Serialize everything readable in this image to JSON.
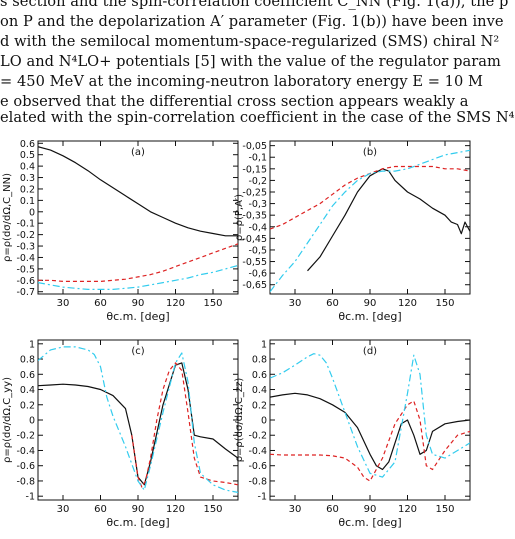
{
  "text_lines": [
    "s section and the spin-correlation coefficient C_NN (Fig. 1(a)), the p",
    "on P and the depolarization A′ parameter (Fig. 1(b)) have been inve",
    "d with the semilocal momentum-space-regularized (SMS) chiral N²",
    "LO and N⁴LO+ potentials [5] with the value of the regulator param",
    "= 450 MeV at the incoming-neutron laboratory energy E = 10 M",
    "e observed that the differential cross section appears weakly a",
    "elated with the spin-correlation coefficient in the case of the SMS N⁴"
  ],
  "colors": {
    "solid": "#111111",
    "dashed": "#dd2222",
    "dashdot": "#33ccee"
  },
  "chart_data": [
    {
      "type": "line",
      "panel_label": "(a)",
      "ylabel": "ρ=ρ(dσ/dΩ,C_NN)",
      "xlabel": "θc.m. [deg]",
      "xlim": [
        10,
        170
      ],
      "ylim": [
        -0.72,
        0.62
      ],
      "xticks": [
        30,
        60,
        90,
        120,
        150
      ],
      "yticks": [
        0.6,
        0.5,
        0.4,
        0.3,
        0.2,
        0.1,
        0,
        -0.1,
        -0.2,
        -0.3,
        -0.4,
        -0.5,
        -0.6,
        -0.7
      ],
      "ytick_labels": [
        "0.6",
        "0.5",
        "0.4",
        "0.3",
        "0.2",
        "0.1",
        "0",
        "-0.1",
        "-0.2",
        "-0.3",
        "-0.4",
        "-0.5",
        "-0.6",
        "-0.7"
      ],
      "series": [
        {
          "style": "solid",
          "x": [
            10,
            20,
            30,
            40,
            50,
            60,
            70,
            80,
            90,
            100,
            110,
            120,
            130,
            140,
            150,
            160,
            170
          ],
          "y": [
            0.57,
            0.54,
            0.49,
            0.43,
            0.36,
            0.28,
            0.21,
            0.14,
            0.07,
            0.0,
            -0.05,
            -0.1,
            -0.14,
            -0.17,
            -0.19,
            -0.21,
            -0.21
          ]
        },
        {
          "style": "dashed",
          "x": [
            10,
            20,
            30,
            40,
            50,
            60,
            70,
            80,
            90,
            100,
            110,
            120,
            130,
            140,
            150,
            160,
            170
          ],
          "y": [
            -0.6,
            -0.6,
            -0.61,
            -0.61,
            -0.61,
            -0.61,
            -0.6,
            -0.59,
            -0.57,
            -0.55,
            -0.52,
            -0.48,
            -0.44,
            -0.4,
            -0.36,
            -0.32,
            -0.28
          ]
        },
        {
          "style": "dashdot",
          "x": [
            10,
            20,
            30,
            40,
            50,
            60,
            70,
            80,
            90,
            100,
            110,
            120,
            130,
            140,
            150,
            160,
            170
          ],
          "y": [
            -0.62,
            -0.64,
            -0.66,
            -0.67,
            -0.68,
            -0.68,
            -0.68,
            -0.67,
            -0.66,
            -0.64,
            -0.62,
            -0.6,
            -0.58,
            -0.55,
            -0.53,
            -0.5,
            -0.47
          ]
        }
      ]
    },
    {
      "type": "line",
      "panel_label": "(b)",
      "ylabel": "ρ=ρ(P,A′)",
      "xlabel": "θc.m. [deg]",
      "xlim": [
        10,
        170
      ],
      "ylim": [
        -0.69,
        -0.03
      ],
      "xticks": [
        30,
        60,
        90,
        120,
        150
      ],
      "yticks": [
        -0.05,
        -0.1,
        -0.15,
        -0.2,
        -0.25,
        -0.3,
        -0.35,
        -0.4,
        -0.45,
        -0.5,
        -0.55,
        -0.6,
        -0.65
      ],
      "ytick_labels": [
        "-0,05",
        "-0,1",
        "-0,15",
        "-0,2",
        "-0,25",
        "-0,3",
        "-0,35",
        "-0,4",
        "-0,45",
        "-0,5",
        "-0,55",
        "-0,6",
        "-0,65"
      ],
      "series": [
        {
          "style": "solid",
          "x": [
            40,
            50,
            60,
            70,
            80,
            90,
            100,
            105,
            110,
            120,
            130,
            140,
            150,
            155,
            160,
            163,
            166,
            170
          ],
          "y": [
            -0.59,
            -0.53,
            -0.44,
            -0.35,
            -0.25,
            -0.18,
            -0.15,
            -0.16,
            -0.2,
            -0.25,
            -0.28,
            -0.32,
            -0.35,
            -0.38,
            -0.39,
            -0.43,
            -0.38,
            -0.42
          ]
        },
        {
          "style": "dashed",
          "x": [
            10,
            20,
            30,
            40,
            50,
            60,
            70,
            80,
            90,
            100,
            110,
            120,
            130,
            140,
            150,
            160,
            170
          ],
          "y": [
            -0.41,
            -0.39,
            -0.36,
            -0.33,
            -0.3,
            -0.26,
            -0.22,
            -0.19,
            -0.17,
            -0.15,
            -0.14,
            -0.14,
            -0.14,
            -0.14,
            -0.15,
            -0.15,
            -0.16
          ]
        },
        {
          "style": "dashdot",
          "x": [
            10,
            20,
            30,
            40,
            50,
            60,
            70,
            80,
            90,
            100,
            110,
            120,
            130,
            140,
            150,
            160,
            170
          ],
          "y": [
            -0.68,
            -0.61,
            -0.55,
            -0.47,
            -0.39,
            -0.31,
            -0.25,
            -0.2,
            -0.17,
            -0.16,
            -0.16,
            -0.15,
            -0.13,
            -0.11,
            -0.09,
            -0.08,
            -0.07
          ]
        }
      ]
    },
    {
      "type": "line",
      "panel_label": "(c)",
      "ylabel": "ρ=ρ(dσ/dΩ,C_yy)",
      "xlabel": "θc.m. [deg]",
      "xlim": [
        10,
        170
      ],
      "ylim": [
        -1.05,
        1.05
      ],
      "xticks": [
        30,
        60,
        90,
        120,
        150
      ],
      "yticks": [
        1,
        0.8,
        0.6,
        0.4,
        0.2,
        0,
        -0.2,
        -0.4,
        -0.6,
        -0.8,
        -1
      ],
      "ytick_labels": [
        "1",
        "0.8",
        "0.6",
        "0.4",
        "0.2",
        "0",
        "-0.2",
        "-0.4",
        "-0.6",
        "-0.8",
        "-1"
      ],
      "series": [
        {
          "style": "solid",
          "x": [
            10,
            20,
            30,
            40,
            50,
            60,
            70,
            80,
            85,
            90,
            95,
            100,
            110,
            120,
            125,
            130,
            135,
            140,
            150,
            160,
            170
          ],
          "y": [
            0.45,
            0.46,
            0.47,
            0.46,
            0.44,
            0.4,
            0.32,
            0.15,
            -0.2,
            -0.75,
            -0.85,
            -0.55,
            0.2,
            0.72,
            0.75,
            0.4,
            -0.2,
            -0.22,
            -0.25,
            -0.38,
            -0.5
          ]
        },
        {
          "style": "dashed",
          "x": [
            85,
            90,
            93,
            96,
            100,
            105,
            110,
            115,
            120,
            125,
            130,
            135,
            140,
            150,
            160,
            170
          ],
          "y": [
            -0.2,
            -0.75,
            -0.88,
            -0.8,
            -0.5,
            0.0,
            0.4,
            0.65,
            0.75,
            0.65,
            0.1,
            -0.5,
            -0.75,
            -0.8,
            -0.82,
            -0.85
          ]
        },
        {
          "style": "dashdot",
          "x": [
            10,
            20,
            30,
            40,
            45,
            50,
            55,
            60,
            65,
            70,
            80,
            90,
            95,
            100,
            110,
            120,
            125,
            130,
            135,
            140,
            150,
            160,
            170
          ],
          "y": [
            0.78,
            0.92,
            0.96,
            0.96,
            0.94,
            0.92,
            0.86,
            0.7,
            0.3,
            0.05,
            -0.35,
            -0.8,
            -0.92,
            -0.6,
            0.1,
            0.75,
            0.88,
            0.5,
            -0.3,
            -0.7,
            -0.85,
            -0.92,
            -0.95
          ]
        }
      ]
    },
    {
      "type": "line",
      "panel_label": "(d)",
      "ylabel": "ρ=ρ(dσ/dΩ,C_zz)",
      "xlabel": "θc.m. [deg]",
      "xlim": [
        10,
        170
      ],
      "ylim": [
        -1.05,
        1.05
      ],
      "xticks": [
        30,
        60,
        90,
        120,
        150
      ],
      "yticks": [
        1,
        0.8,
        0.6,
        0.4,
        0.2,
        0,
        -0.2,
        -0.4,
        -0.6,
        -0.8,
        -1
      ],
      "ytick_labels": [
        "1",
        "0.8",
        "0.6",
        "0.4",
        "0.2",
        "0",
        "-0.2",
        "-0.4",
        "-0.6",
        "-0.8",
        "-1"
      ],
      "series": [
        {
          "style": "solid",
          "x": [
            10,
            20,
            30,
            40,
            50,
            60,
            70,
            80,
            90,
            95,
            100,
            105,
            110,
            115,
            120,
            125,
            130,
            135,
            140,
            150,
            160,
            170
          ],
          "y": [
            0.3,
            0.33,
            0.35,
            0.33,
            0.28,
            0.2,
            0.1,
            -0.1,
            -0.45,
            -0.6,
            -0.65,
            -0.55,
            -0.3,
            -0.05,
            0.0,
            -0.2,
            -0.45,
            -0.4,
            -0.15,
            -0.05,
            -0.02,
            0.0
          ]
        },
        {
          "style": "dashed",
          "x": [
            10,
            20,
            30,
            40,
            50,
            60,
            70,
            80,
            85,
            90,
            100,
            110,
            120,
            125,
            130,
            135,
            140,
            150,
            160,
            170
          ],
          "y": [
            -0.45,
            -0.46,
            -0.46,
            -0.46,
            -0.46,
            -0.47,
            -0.5,
            -0.62,
            -0.75,
            -0.8,
            -0.5,
            -0.05,
            0.2,
            0.25,
            0.0,
            -0.6,
            -0.65,
            -0.4,
            -0.2,
            -0.15
          ]
        },
        {
          "style": "dashdot",
          "x": [
            10,
            20,
            30,
            40,
            45,
            50,
            55,
            60,
            70,
            80,
            90,
            100,
            110,
            120,
            125,
            130,
            135,
            140,
            150,
            160,
            170
          ],
          "y": [
            0.55,
            0.62,
            0.72,
            0.83,
            0.87,
            0.85,
            0.75,
            0.55,
            0.1,
            -0.35,
            -0.7,
            -0.75,
            -0.55,
            0.35,
            0.85,
            0.6,
            -0.2,
            -0.45,
            -0.5,
            -0.4,
            -0.3
          ]
        }
      ]
    }
  ]
}
